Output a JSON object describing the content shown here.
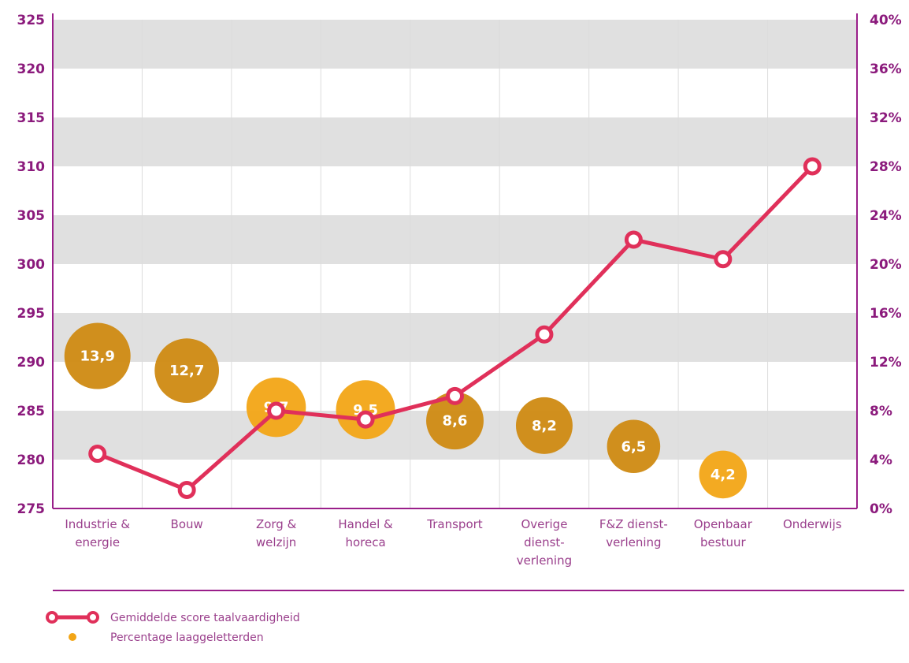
{
  "chart_data": {
    "type": "line",
    "categories": [
      [
        "Industrie &",
        "energie"
      ],
      [
        "Bouw"
      ],
      [
        "Zorg &",
        "welzijn"
      ],
      [
        "Handel &",
        "horeca"
      ],
      [
        "Transport"
      ],
      [
        "Overige",
        "dienst-",
        "verlening"
      ],
      [
        "F&Z dienst-",
        "verlening"
      ],
      [
        "Openbaar",
        "bestuur"
      ],
      [
        "Onderwijs"
      ]
    ],
    "left_axis": {
      "ylim": [
        275,
        325
      ],
      "ticks": [
        "275",
        "280",
        "285",
        "290",
        "295",
        "300",
        "305",
        "310",
        "315",
        "320",
        "325"
      ]
    },
    "right_axis": {
      "ylim": [
        0,
        40
      ],
      "ticks": [
        "0%",
        "4%",
        "8%",
        "12%",
        "16%",
        "20%",
        "24%",
        "28%",
        "32%",
        "36%",
        "40%"
      ]
    },
    "series": [
      {
        "name": "Gemiddelde score taalvaardigheid",
        "axis": "left",
        "kind": "line",
        "values": [
          280.6,
          276.9,
          285.0,
          284.1,
          286.5,
          292.8,
          302.5,
          300.5,
          310.0
        ]
      },
      {
        "name": "Percentage laaggeletterden",
        "axis": "right",
        "kind": "bubble",
        "values": [
          13.9,
          12.7,
          9.7,
          9.5,
          8.6,
          8.2,
          6.5,
          4.2,
          null
        ],
        "labels": [
          "13,9",
          "12,7",
          "9,7",
          "9,5",
          "8,6",
          "8,2",
          "6,5",
          "4,2",
          ""
        ]
      }
    ],
    "grid": "horizontal bands",
    "legend_position": "bottom-left",
    "colors": {
      "line": "#e0305a",
      "bubble_light": "#f2a516",
      "bubble_dark": "#cf8a12",
      "axis": "#9a1f8a",
      "band": "#e0e0e0",
      "text": "#8b1a7c"
    }
  }
}
